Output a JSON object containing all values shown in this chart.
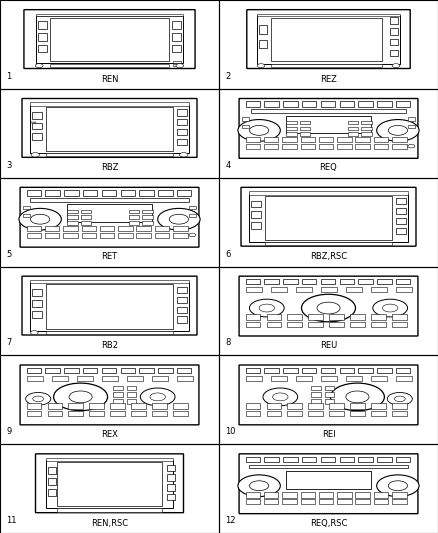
{
  "items": [
    {
      "num": "1",
      "label": "REN",
      "type": "ts_large"
    },
    {
      "num": "2",
      "label": "REZ",
      "type": "ts_small"
    },
    {
      "num": "3",
      "label": "RBZ",
      "type": "ts_medium"
    },
    {
      "num": "4",
      "label": "REQ",
      "type": "cd_req"
    },
    {
      "num": "5",
      "label": "RET",
      "type": "cd_ret"
    },
    {
      "num": "6",
      "label": "RBZ,RSC",
      "type": "ts_rsc"
    },
    {
      "num": "7",
      "label": "RB2",
      "type": "ts_rb2"
    },
    {
      "num": "8",
      "label": "REU",
      "type": "cd_reu"
    },
    {
      "num": "9",
      "label": "REX",
      "type": "cd_rex"
    },
    {
      "num": "10",
      "label": "REI",
      "type": "cd_rei"
    },
    {
      "num": "11",
      "label": "REN,RSC",
      "type": "ts_ren_rsc"
    },
    {
      "num": "12",
      "label": "REQ,RSC",
      "type": "cd_req_rsc"
    }
  ],
  "bg": "#ffffff",
  "lc": "#000000",
  "fc_body": "#ffffff",
  "fc_btn": "#ffffff",
  "label_fs": 6,
  "num_fs": 6
}
